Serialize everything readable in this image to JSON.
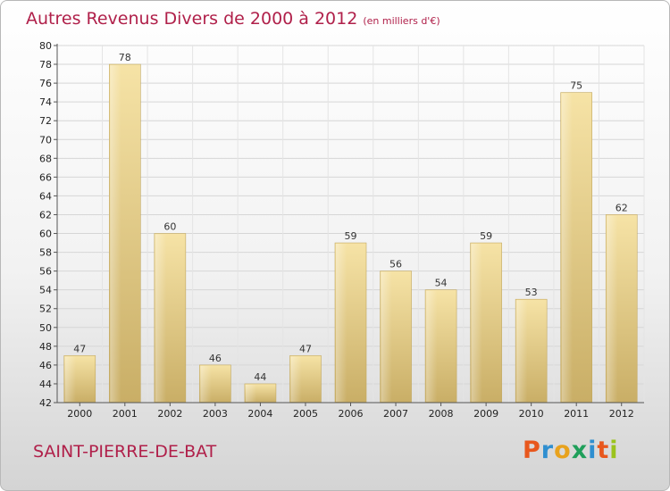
{
  "title": "Autres Revenus Divers de 2000 à 2012",
  "subtitle": "(en milliers d'€)",
  "town": "SAINT-PIERRE-DE-BAT",
  "logo": {
    "letters": [
      "P",
      "r",
      "o",
      "x",
      "i",
      "t",
      "i"
    ],
    "colors": [
      "#e8571d",
      "#2f8fd0",
      "#e8a21d",
      "#1f9f5a",
      "#2f8fd0",
      "#e8571d",
      "#9bc31d"
    ]
  },
  "colors": {
    "title": "#b0204a",
    "bar_light": "#f6e3a6",
    "bar_dark": "#c9ae66",
    "grid": "#d6d6d6"
  },
  "chart_data": {
    "type": "bar",
    "categories": [
      "2000",
      "2001",
      "2002",
      "2003",
      "2004",
      "2005",
      "2006",
      "2007",
      "2008",
      "2009",
      "2010",
      "2011",
      "2012"
    ],
    "values": [
      47,
      78,
      60,
      46,
      44,
      47,
      59,
      56,
      54,
      59,
      53,
      75,
      62
    ],
    "ylim": [
      42,
      80
    ],
    "yticks": [
      42,
      44,
      46,
      48,
      50,
      52,
      54,
      56,
      58,
      60,
      62,
      64,
      66,
      68,
      70,
      72,
      74,
      76,
      78,
      80
    ],
    "grid": true,
    "title": "Autres Revenus Divers de 2000 à 2012",
    "subtitle": "(en milliers d'€)"
  }
}
